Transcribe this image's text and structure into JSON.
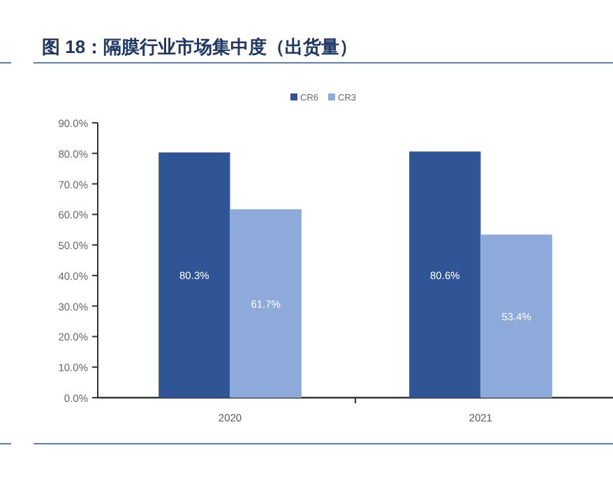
{
  "chart_data": {
    "type": "bar",
    "title": "图 18：隔膜行业市场集中度（出货量）",
    "categories": [
      "2020",
      "2021"
    ],
    "series": [
      {
        "name": "CR6",
        "color": "#2f5597",
        "values": [
          80.3,
          80.6
        ],
        "value_labels": [
          "80.3%",
          "80.6%"
        ]
      },
      {
        "name": "CR3",
        "color": "#8eaadb",
        "values": [
          61.7,
          53.4
        ],
        "value_labels": [
          "61.7%",
          "53.4%"
        ]
      }
    ],
    "ylim": [
      0,
      90
    ],
    "yticks": [
      {
        "value": 0,
        "label": "0.0%"
      },
      {
        "value": 10,
        "label": "10.0%"
      },
      {
        "value": 20,
        "label": "20.0%"
      },
      {
        "value": 30,
        "label": "30.0%"
      },
      {
        "value": 40,
        "label": "40.0%"
      },
      {
        "value": 50,
        "label": "50.0%"
      },
      {
        "value": 60,
        "label": "60.0%"
      },
      {
        "value": 70,
        "label": "70.0%"
      },
      {
        "value": 80,
        "label": "80.0%"
      },
      {
        "value": 90,
        "label": "90.0%"
      }
    ],
    "legend": "top",
    "grid": false
  }
}
